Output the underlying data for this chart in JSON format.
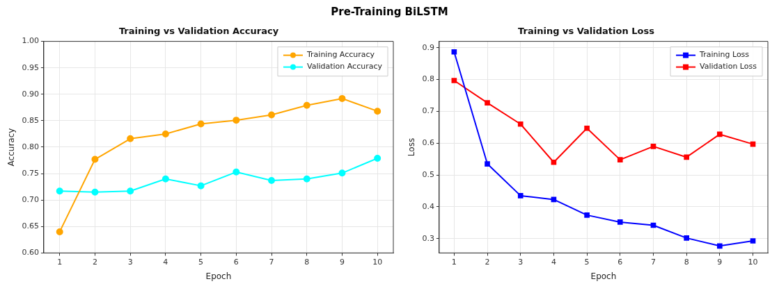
{
  "chart_data": [
    {
      "type": "line",
      "title": "Training vs Validation Accuracy",
      "xlabel": "Epoch",
      "ylabel": "Accuracy",
      "annotations": [
        "Pre-Training BiLSTM"
      ],
      "x": [
        1,
        2,
        3,
        4,
        5,
        6,
        7,
        8,
        9,
        10
      ],
      "xlim": [
        0.55,
        10.45
      ],
      "xticks": [
        1,
        2,
        3,
        4,
        5,
        6,
        7,
        8,
        9,
        10
      ],
      "ylim": [
        0.6,
        1.0
      ],
      "yticks": [
        {
          "value": 0.6,
          "label": "0.60"
        },
        {
          "value": 0.65,
          "label": "0.65"
        },
        {
          "value": 0.7,
          "label": "0.70"
        },
        {
          "value": 0.75,
          "label": "0.75"
        },
        {
          "value": 0.8,
          "label": "0.80"
        },
        {
          "value": 0.85,
          "label": "0.85"
        },
        {
          "value": 0.9,
          "label": "0.90"
        },
        {
          "value": 0.95,
          "label": "0.95"
        },
        {
          "value": 1.0,
          "label": "1.00"
        }
      ],
      "grid": true,
      "legend": "top right",
      "marker": "circle",
      "line_style": "solid",
      "series": [
        {
          "name": "Training Accuracy",
          "color": "#ffa500",
          "values": [
            0.64,
            0.777,
            0.816,
            0.825,
            0.844,
            0.851,
            0.861,
            0.879,
            0.892,
            0.868
          ]
        },
        {
          "name": "Validation Accuracy",
          "color": "#00ffff",
          "values": [
            0.717,
            0.715,
            0.717,
            0.74,
            0.727,
            0.753,
            0.737,
            0.74,
            0.751,
            0.779
          ]
        }
      ]
    },
    {
      "type": "line",
      "title": "Training vs Validation Loss",
      "xlabel": "Epoch",
      "ylabel": "Loss",
      "x": [
        1,
        2,
        3,
        4,
        5,
        6,
        7,
        8,
        9,
        10
      ],
      "xlim": [
        0.55,
        10.45
      ],
      "xticks": [
        1,
        2,
        3,
        4,
        5,
        6,
        7,
        8,
        9,
        10
      ],
      "ylim": [
        0.255,
        0.92
      ],
      "yticks": [
        0.3,
        0.4,
        0.5,
        0.6,
        0.7,
        0.8,
        0.9
      ],
      "grid": true,
      "legend": "top right",
      "marker": "square",
      "line_style": "solid",
      "series": [
        {
          "name": "Training Loss",
          "color": "#0000ff",
          "values": [
            0.887,
            0.535,
            0.435,
            0.423,
            0.374,
            0.352,
            0.342,
            0.302,
            0.277,
            0.293
          ]
        },
        {
          "name": "Validation Loss",
          "color": "#ff0000",
          "values": [
            0.797,
            0.727,
            0.66,
            0.54,
            0.647,
            0.548,
            0.59,
            0.556,
            0.628,
            0.597
          ]
        }
      ]
    }
  ]
}
